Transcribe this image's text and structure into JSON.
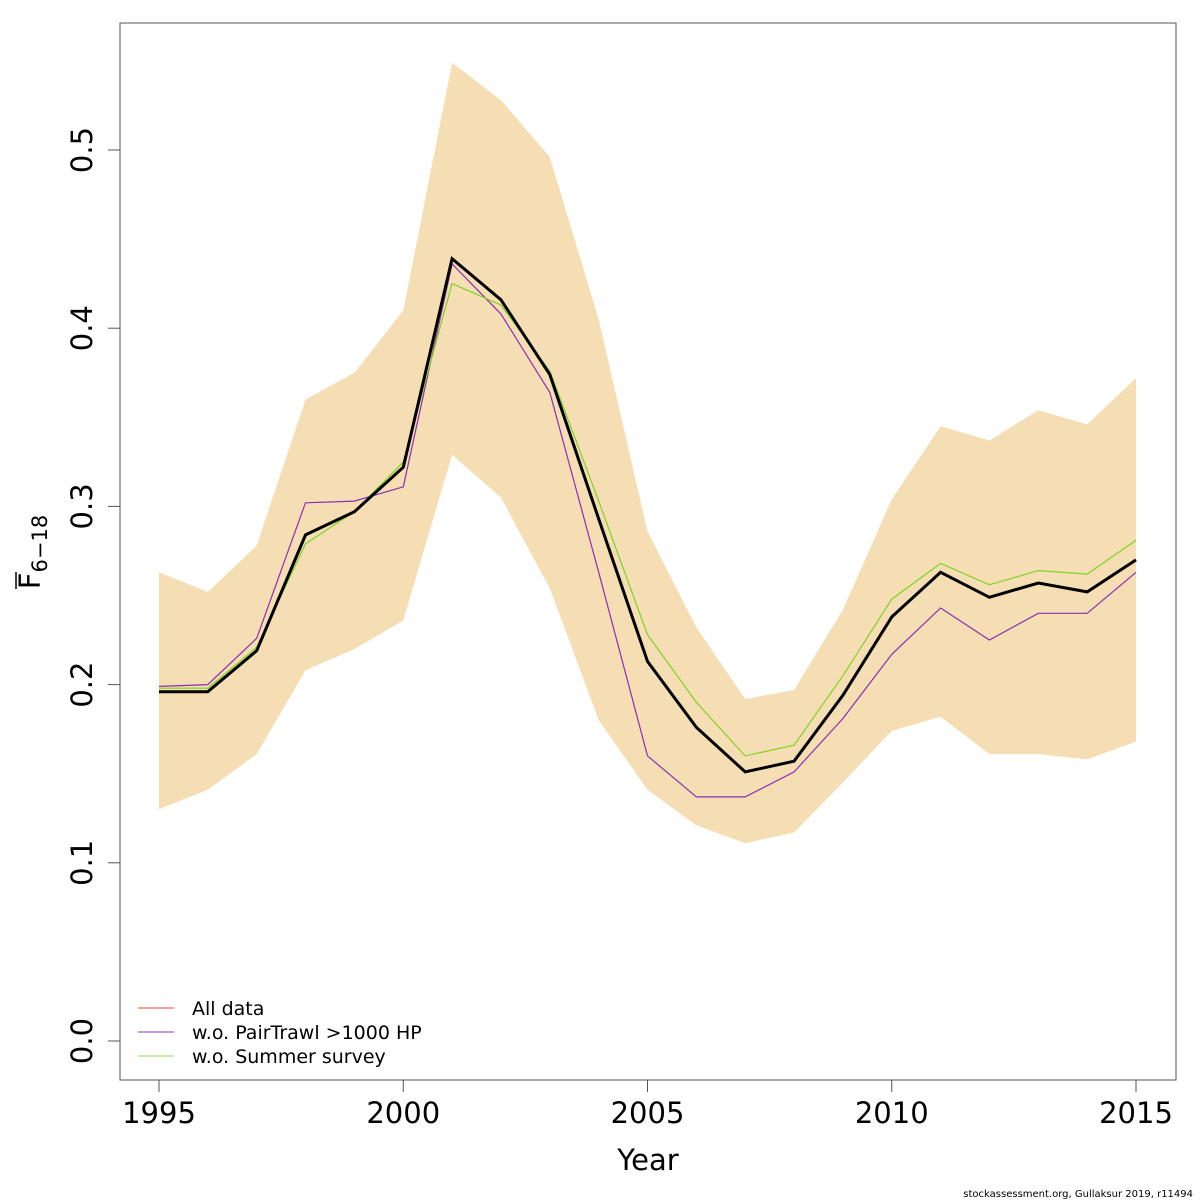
{
  "chart_data": {
    "type": "line",
    "title": "",
    "xlabel": "Year",
    "ylabel": {
      "main": "F",
      "subscript": "6−18",
      "overline": true
    },
    "xlim": [
      1995,
      2015
    ],
    "ylim": [
      0.0,
      0.55
    ],
    "grid": false,
    "x_ticks": [
      1995,
      2000,
      2005,
      2010,
      2015
    ],
    "x_tick_labels": [
      "1995",
      "2000",
      "2005",
      "2010",
      "2015"
    ],
    "y_ticks": [
      0.0,
      0.1,
      0.2,
      0.3,
      0.4,
      0.5
    ],
    "y_tick_labels": [
      "0.0",
      "0.1",
      "0.2",
      "0.3",
      "0.4",
      "0.5"
    ],
    "x": [
      1995,
      1996,
      1997,
      1998,
      1999,
      2000,
      2001,
      2002,
      2003,
      2004,
      2005,
      2006,
      2007,
      2008,
      2009,
      2010,
      2011,
      2012,
      2013,
      2014,
      2015
    ],
    "confidence_band": {
      "name": "All data confidence interval",
      "color": "#f5deb3",
      "upper": [
        0.263,
        0.252,
        0.278,
        0.36,
        0.375,
        0.41,
        0.549,
        0.528,
        0.496,
        0.405,
        0.286,
        0.232,
        0.192,
        0.197,
        0.242,
        0.304,
        0.345,
        0.337,
        0.354,
        0.346,
        0.372
      ],
      "lower": [
        0.13,
        0.141,
        0.161,
        0.208,
        0.22,
        0.236,
        0.329,
        0.305,
        0.254,
        0.18,
        0.141,
        0.121,
        0.111,
        0.117,
        0.145,
        0.174,
        0.182,
        0.161,
        0.161,
        0.158,
        0.168
      ]
    },
    "series": [
      {
        "name": "All data",
        "legend_color": "#f08080",
        "line_color": "#000000",
        "values": [
          0.196,
          0.196,
          0.219,
          0.284,
          0.297,
          0.322,
          0.439,
          0.416,
          0.374,
          0.293,
          0.213,
          0.176,
          0.151,
          0.157,
          0.194,
          0.238,
          0.263,
          0.249,
          0.257,
          0.252,
          0.27
        ]
      },
      {
        "name": "w.o. PairTrawl >1000 HP",
        "legend_color": "#b07fd6",
        "line_color": "#8b2fb3",
        "values": [
          0.199,
          0.2,
          0.226,
          0.302,
          0.303,
          0.311,
          0.436,
          0.408,
          0.364,
          0.263,
          0.16,
          0.137,
          0.137,
          0.151,
          0.181,
          0.217,
          0.243,
          0.225,
          0.24,
          0.24,
          0.263
        ]
      },
      {
        "name": "w.o. Summer survey",
        "legend_color": "#b8e68c",
        "line_color": "#7fd321",
        "values": [
          0.198,
          0.198,
          0.221,
          0.279,
          0.297,
          0.325,
          0.425,
          0.413,
          0.376,
          0.303,
          0.228,
          0.19,
          0.16,
          0.166,
          0.205,
          0.248,
          0.268,
          0.256,
          0.264,
          0.262,
          0.281
        ]
      }
    ],
    "legend": {
      "position": "bottom-left",
      "entries": [
        "All data",
        "w.o. PairTrawl >1000 HP",
        "w.o. Summer survey"
      ]
    },
    "annotations": [
      "stockassessment.org, Gullaksur  2019, r11494"
    ]
  }
}
